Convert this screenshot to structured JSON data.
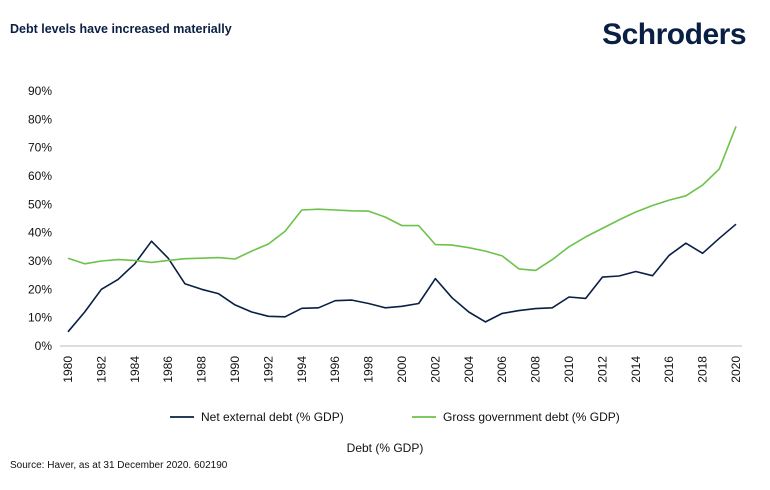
{
  "header": {
    "title": "Debt levels have increased materially",
    "brand": "Schroders"
  },
  "footer": {
    "source": "Source: Haver, as at 31 December 2020. 602190"
  },
  "chart_data": {
    "type": "line",
    "title": "Debt levels have increased materially",
    "xlabel": "Debt (% GDP)",
    "ylabel": "",
    "ylim": [
      0,
      90
    ],
    "yticks": [
      "0%",
      "10%",
      "20%",
      "30%",
      "40%",
      "50%",
      "60%",
      "70%",
      "80%",
      "90%"
    ],
    "xticks": [
      "1980",
      "1982",
      "1984",
      "1986",
      "1988",
      "1990",
      "1992",
      "1994",
      "1996",
      "1998",
      "2000",
      "2002",
      "2004",
      "2006",
      "2008",
      "2010",
      "2012",
      "2014",
      "2016",
      "2018",
      "2020"
    ],
    "grid": false,
    "legend_position": "bottom",
    "x": [
      1980,
      1981,
      1982,
      1983,
      1984,
      1985,
      1986,
      1987,
      1988,
      1989,
      1990,
      1991,
      1992,
      1993,
      1994,
      1995,
      1996,
      1997,
      1998,
      1999,
      2000,
      2001,
      2002,
      2003,
      2004,
      2005,
      2006,
      2007,
      2008,
      2009,
      2010,
      2011,
      2012,
      2013,
      2014,
      2015,
      2016,
      2017,
      2018,
      2019,
      2020
    ],
    "series": [
      {
        "name": "Net external debt (% GDP)",
        "color": "#0a1f44",
        "values": [
          5,
          12,
          20,
          23.5,
          29,
          37,
          31,
          22,
          20,
          18.5,
          14.5,
          12,
          10.5,
          10.3,
          13.3,
          13.5,
          16,
          16.2,
          15,
          13.5,
          14,
          15,
          23.8,
          17,
          12,
          8.5,
          11.5,
          12.5,
          13.2,
          13.5,
          17.3,
          16.8,
          24.3,
          24.7,
          26.3,
          24.8,
          32,
          36.3,
          32.7,
          38,
          43
        ]
      },
      {
        "name": "Gross government debt (% GDP)",
        "color": "#6cc24a",
        "values": [
          31,
          29,
          30,
          30.5,
          30.2,
          29.5,
          30.2,
          30.8,
          31,
          31.2,
          30.7,
          33.5,
          36,
          40.5,
          48,
          48.3,
          48,
          47.7,
          47.6,
          45.5,
          42.5,
          42.5,
          35.8,
          35.6,
          34.7,
          33.5,
          31.8,
          27.2,
          26.7,
          30.5,
          35,
          38.5,
          41.5,
          44.5,
          47.3,
          49.6,
          51.5,
          53,
          56.8,
          62.5,
          77.5
        ]
      }
    ]
  }
}
